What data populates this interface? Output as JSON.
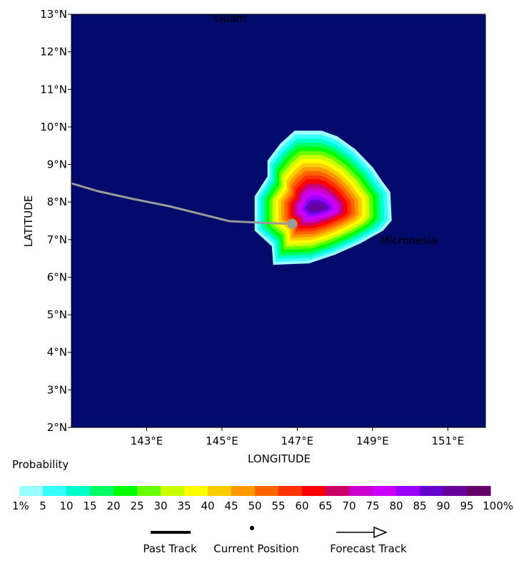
{
  "chart_data": {
    "type": "heatmap",
    "xlabel": "LONGITUDE",
    "ylabel": "LATITUDE",
    "xlim": [
      141.0,
      152.0
    ],
    "ylim": [
      2.0,
      13.0
    ],
    "x_ticks": [
      {
        "value": 143,
        "label": "143°E"
      },
      {
        "value": 145,
        "label": "145°E"
      },
      {
        "value": 147,
        "label": "147°E"
      },
      {
        "value": 149,
        "label": "149°E"
      },
      {
        "value": 151,
        "label": "151°E"
      }
    ],
    "y_ticks": [
      {
        "value": 2,
        "label": "2°N"
      },
      {
        "value": 3,
        "label": "3°N"
      },
      {
        "value": 4,
        "label": "4°N"
      },
      {
        "value": 5,
        "label": "5°N"
      },
      {
        "value": 6,
        "label": "6°N"
      },
      {
        "value": 7,
        "label": "7°N"
      },
      {
        "value": 8,
        "label": "8°N"
      },
      {
        "value": 9,
        "label": "9°N"
      },
      {
        "value": 10,
        "label": "10°N"
      },
      {
        "value": 11,
        "label": "11°N"
      },
      {
        "value": 12,
        "label": "12°N"
      },
      {
        "value": 13,
        "label": "13°N"
      }
    ],
    "background_color": "#000b6b",
    "place_labels": [
      {
        "name": "Guam",
        "lon": 144.8,
        "lat": 12.9,
        "color": "#22cc22"
      },
      {
        "name": "Micronesia",
        "lon": 149.2,
        "lat": 6.98,
        "color": "#22cc22"
      }
    ],
    "past_track": [
      {
        "lon": 141.0,
        "lat": 8.5
      },
      {
        "lon": 141.7,
        "lat": 8.29
      },
      {
        "lon": 142.6,
        "lat": 8.09
      },
      {
        "lon": 143.6,
        "lat": 7.89
      },
      {
        "lon": 145.2,
        "lat": 7.49
      },
      {
        "lon": 146.3,
        "lat": 7.44
      },
      {
        "lon": 146.87,
        "lat": 7.42
      }
    ],
    "current_position": {
      "lon": 146.87,
      "lat": 7.42
    },
    "probability_field": {
      "center": {
        "lon": 147.5,
        "lat": 7.85
      },
      "peak_percent": 92
    },
    "colorbar": {
      "title": "Probability",
      "colors": [
        "#99ffff",
        "#33ffff",
        "#00ffcc",
        "#00ff66",
        "#00ff00",
        "#66ff00",
        "#ccff00",
        "#ffff00",
        "#ffcc00",
        "#ff9900",
        "#ff6600",
        "#ff3300",
        "#ff0000",
        "#cc0066",
        "#cc00cc",
        "#cc00ff",
        "#9900ff",
        "#6600cc",
        "#660099",
        "#660066"
      ],
      "tick_labels": [
        "1%",
        "5",
        "10",
        "15",
        "20",
        "25",
        "30",
        "35",
        "40",
        "45",
        "50",
        "55",
        "60",
        "65",
        "70",
        "75",
        "80",
        "85",
        "90",
        "95",
        "100%"
      ]
    }
  },
  "legend": {
    "past_track": "Past Track",
    "current_position": "Current Position",
    "forecast_track": "Forecast Track"
  }
}
